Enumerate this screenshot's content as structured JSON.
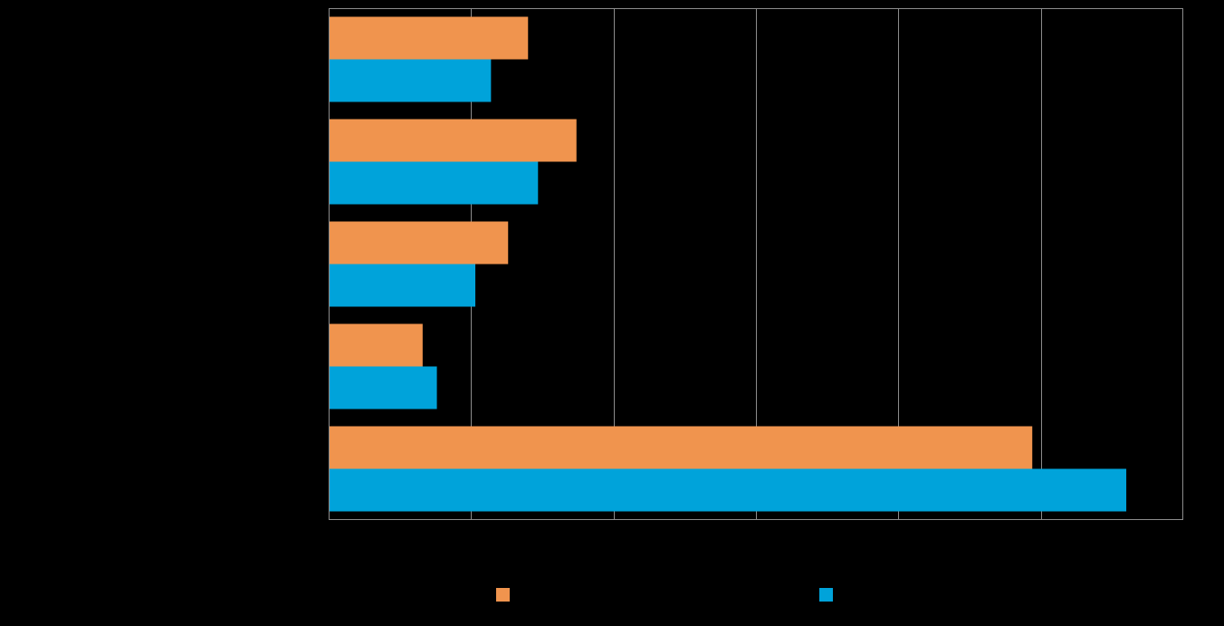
{
  "chart_data": {
    "type": "bar",
    "orientation": "horizontal",
    "title": "",
    "xlabel": "",
    "ylabel": "",
    "categories": [
      "",
      "",
      "",
      "",
      ""
    ],
    "xlim": [
      0,
      6
    ],
    "grid": true,
    "legend_position": "bottom",
    "series": [
      {
        "color": "#F0944E",
        "values": [
          1.4,
          1.74,
          1.26,
          0.66,
          4.94
        ]
      },
      {
        "color": "#00A3DA",
        "values": [
          1.14,
          1.47,
          1.03,
          0.76,
          5.6
        ]
      }
    ]
  },
  "colors": {
    "background": "#000000",
    "grid": "#8C8C8C",
    "axis": "#8C8C8C"
  }
}
